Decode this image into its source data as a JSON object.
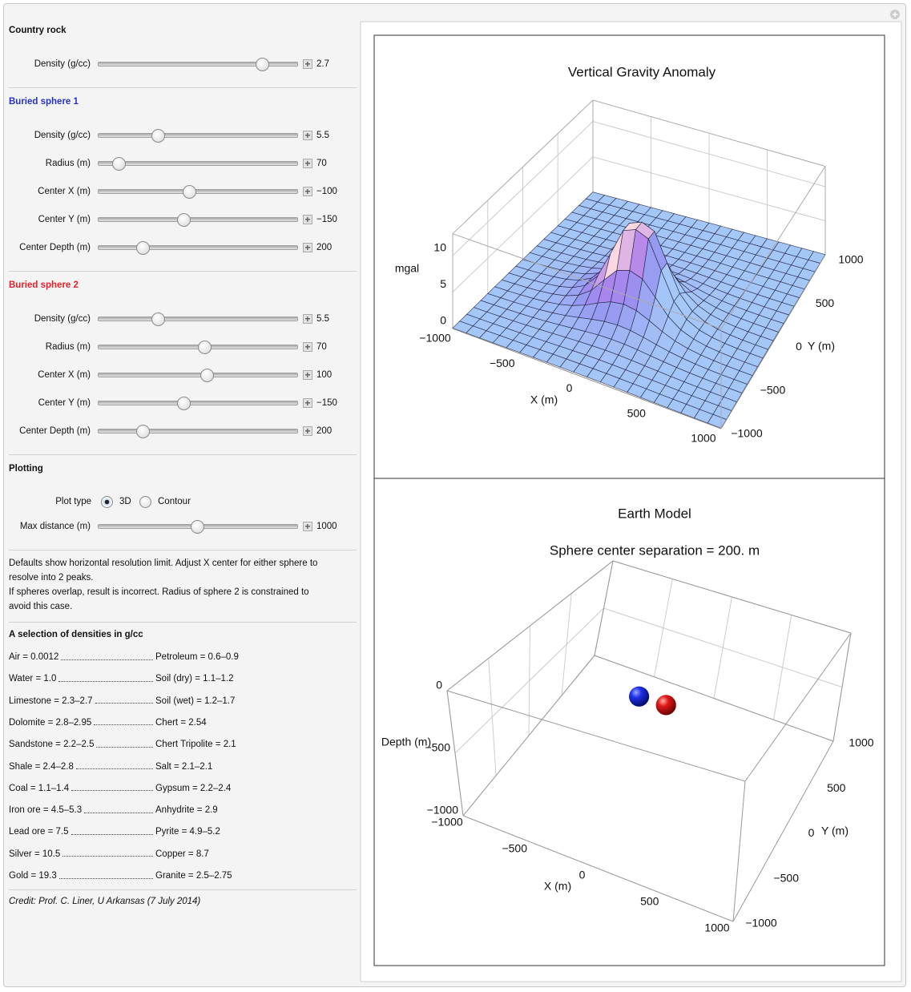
{
  "sections": [
    {
      "title": "Country rock",
      "sliders": [
        {
          "label": "Density (g/cc)",
          "value": "2.7"
        }
      ]
    },
    {
      "title": "Buried sphere 1",
      "sliders": [
        {
          "label": "Density (g/cc)",
          "value": "5.5"
        },
        {
          "label": "Radius (m)",
          "value": "70"
        },
        {
          "label": "Center X (m)",
          "value": "−100"
        },
        {
          "label": "Center Y (m)",
          "value": "−150"
        },
        {
          "label": "Center Depth (m)",
          "value": "200"
        }
      ]
    },
    {
      "title": "Buried sphere 2",
      "sliders": [
        {
          "label": "Density (g/cc)",
          "value": "5.5"
        },
        {
          "label": "Radius (m)",
          "value": "70"
        },
        {
          "label": "Center X (m)",
          "value": "100"
        },
        {
          "label": "Center Y (m)",
          "value": "−150"
        },
        {
          "label": "Center Depth (m)",
          "value": "200"
        }
      ]
    }
  ],
  "plotting": {
    "title": "Plotting",
    "plot_type": {
      "label": "Plot type",
      "options": [
        "3D",
        "Contour"
      ]
    },
    "sliders": [
      {
        "label": "Max distance (m)",
        "value": "1000"
      }
    ]
  },
  "notes": [
    "Defaults show horizontal resolution limit. Adjust X center for either sphere to resolve into 2 peaks.",
    "If spheres overlap, result is incorrect.  Radius of sphere 2 is constrained to avoid this case."
  ],
  "densities": {
    "title": "A selection of densities in g/cc",
    "rows": [
      [
        "Air = 0.0012",
        "Petroleum = 0.6–0.9"
      ],
      [
        "Water = 1.0",
        "Soil (dry) = 1.1–1.2"
      ],
      [
        "Limestone = 2.3–2.7",
        "Soil (wet) = 1.2–1.7"
      ],
      [
        "Dolomite = 2.8–2.95",
        "Chert = 2.54"
      ],
      [
        "Sandstone = 2.2–2.5",
        "Chert Tripolite = 2.1"
      ],
      [
        "Shale = 2.4–2.8",
        "Salt = 2.1–2.1"
      ],
      [
        "Coal = 1.1–1.4",
        "Gypsum = 2.2–2.4"
      ],
      [
        "Iron ore = 4.5–5.3",
        "Anhydrite = 2.9"
      ],
      [
        "Lead ore = 7.5",
        "Pyrite = 4.9–5.2"
      ],
      [
        "Silver = 10.5",
        "Copper = 8.7"
      ],
      [
        "Gold = 19.3",
        "Granite = 2.5–2.75"
      ]
    ]
  },
  "credit": "Credit: Prof. C. Liner, U Arkansas (7 July 2014)",
  "gravity_plot": {
    "title": "Vertical Gravity Anomaly",
    "z_label": "mgal",
    "x_label": "X (m)",
    "y_label": "Y (m)",
    "zticks": [
      0,
      5,
      10
    ],
    "xticks": [
      {
        "value": -1000,
        "label": "−1000"
      },
      {
        "value": -500,
        "label": "−500"
      },
      0,
      500,
      1000
    ],
    "yticks": [
      {
        "value": -1000,
        "label": "−1000"
      },
      {
        "value": -500,
        "label": "−500"
      },
      0,
      500,
      1000
    ]
  },
  "earth_plot": {
    "title": "Earth Model",
    "subtitle": "Sphere center separation = 200. m",
    "z_label": "Depth (m)",
    "x_label": "X (m)",
    "y_label": "Y (m)",
    "zticks": [
      0,
      {
        "value": -500,
        "label": "−500"
      },
      {
        "value": -1000,
        "label": "−1000"
      }
    ],
    "xticks": [
      {
        "value": -1000,
        "label": "−1000"
      },
      {
        "value": -500,
        "label": "−500"
      },
      0,
      500,
      1000
    ],
    "yticks": [
      {
        "value": -1000,
        "label": "−1000"
      },
      {
        "value": -500,
        "label": "−500"
      },
      0,
      500,
      1000
    ]
  }
}
